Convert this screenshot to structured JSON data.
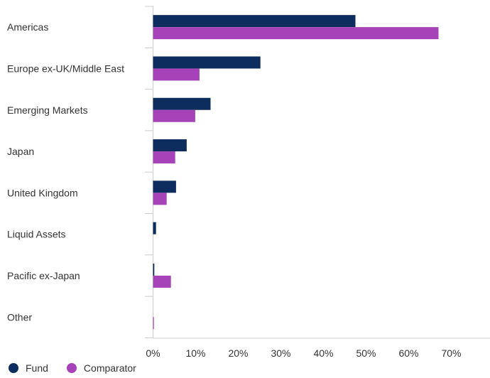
{
  "chart_data": {
    "type": "bar",
    "orientation": "horizontal",
    "categories": [
      "Americas",
      "Europe ex-UK/Middle East",
      "Emerging Markets",
      "Japan",
      "United Kingdom",
      "Liquid Assets",
      "Pacific ex-Japan",
      "Other"
    ],
    "series": [
      {
        "name": "Fund",
        "color": "#0d2d5e",
        "values": [
          47.5,
          25.2,
          13.5,
          7.9,
          5.4,
          0.7,
          0.3,
          0.0
        ]
      },
      {
        "name": "Comparator",
        "color": "#a743b8",
        "values": [
          67.0,
          10.9,
          9.9,
          5.2,
          3.2,
          0.0,
          4.2,
          0.2
        ]
      }
    ],
    "xlim": [
      0,
      70
    ],
    "xticks": [
      0,
      10,
      20,
      30,
      40,
      50,
      60,
      70
    ],
    "xtick_labels": [
      "0%",
      "10%",
      "20%",
      "30%",
      "40%",
      "50%",
      "60%",
      "70%"
    ],
    "grid": false,
    "legend_position": "bottom-left"
  }
}
